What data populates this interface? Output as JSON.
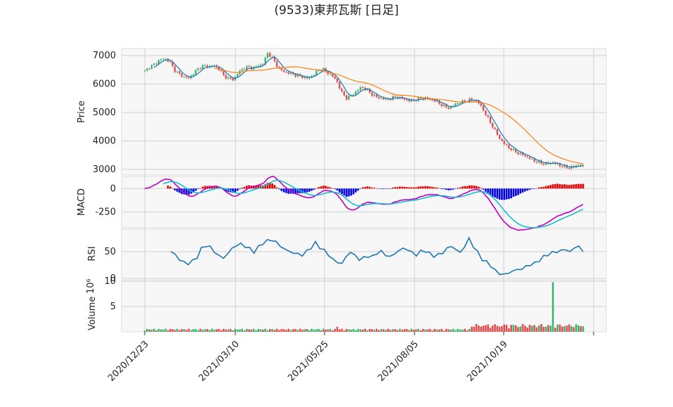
{
  "chart_data": {
    "type": "candlestick-with-indicators",
    "title": "(9533)東邦瓦斯 [日足]",
    "x_dates": [
      "2020/12/23",
      "2021/03/10",
      "2021/05/25",
      "2021/08/05",
      "2021/10/19"
    ],
    "panels": {
      "price": {
        "ylabel": "Price",
        "ylim": [
          2800,
          7250
        ],
        "yticks": [
          3000,
          4000,
          5000,
          6000,
          7000
        ],
        "close_path": [
          6450,
          6600,
          6700,
          6850,
          6900,
          6800,
          6500,
          6350,
          6250,
          6200,
          6400,
          6550,
          6650,
          6600,
          6650,
          6550,
          6300,
          6200,
          6150,
          6400,
          6550,
          6600,
          6550,
          6650,
          6700,
          7100,
          6900,
          6600,
          6450,
          6400,
          6350,
          6300,
          6250,
          6200,
          6300,
          6450,
          6550,
          6400,
          6300,
          6100,
          5700,
          5500,
          5600,
          5750,
          5900,
          5800,
          5650,
          5550,
          5500,
          5450,
          5500,
          5550,
          5500,
          5450,
          5400,
          5450,
          5500,
          5500,
          5450,
          5400,
          5300,
          5200,
          5150,
          5300,
          5350,
          5400,
          5450,
          5450,
          5300,
          5000,
          4700,
          4400,
          4100,
          3900,
          3750,
          3650,
          3550,
          3500,
          3400,
          3300,
          3250,
          3200,
          3200,
          3250,
          3150,
          3100,
          3050,
          3100,
          3150,
          3100
        ],
        "ma_long_start": 5,
        "ma_long_window": 25,
        "candle_up_color": "#3cb371",
        "candle_down_color": "#e05050",
        "ma_short_color": "#1f77b4",
        "ma_long_color": "#ff7f0e"
      },
      "macd": {
        "ylabel": "MACD",
        "yticks": [
          0,
          -250
        ],
        "ylim": [
          -420,
          130
        ],
        "macd_color": "#c000c0",
        "signal_color": "#17becf",
        "hist_pos_color": "#e00000",
        "hist_neg_color": "#0000e0"
      },
      "rsi": {
        "ylabel": "RSI",
        "yticks": [
          0,
          50
        ],
        "ylim": [
          0,
          92
        ],
        "values": [
          50,
          45,
          35,
          30,
          28,
          32,
          40,
          55,
          62,
          58,
          50,
          42,
          38,
          46,
          56,
          62,
          64,
          60,
          55,
          50,
          58,
          66,
          70,
          72,
          68,
          60,
          55,
          50,
          48,
          45,
          44,
          50,
          58,
          66,
          58,
          52,
          44,
          35,
          30,
          28,
          40,
          50,
          42,
          36,
          38,
          42,
          40,
          48,
          50,
          44,
          40,
          46,
          52,
          56,
          54,
          48,
          44,
          50,
          52,
          46,
          42,
          44,
          48,
          56,
          60,
          54,
          48,
          60,
          74,
          60,
          48,
          36,
          30,
          24,
          14,
          9,
          7,
          10,
          14,
          16,
          18,
          22,
          26,
          28,
          34,
          40,
          45,
          48,
          50,
          52,
          54,
          50,
          56,
          62,
          48
        ],
        "color": "#1f77b4"
      },
      "volume": {
        "ylabel": "Volume",
        "exponent": "10⁶",
        "yticks": [
          5,
          10
        ],
        "ylim": [
          0,
          10.3
        ],
        "spike_value": 9.8
      }
    }
  }
}
